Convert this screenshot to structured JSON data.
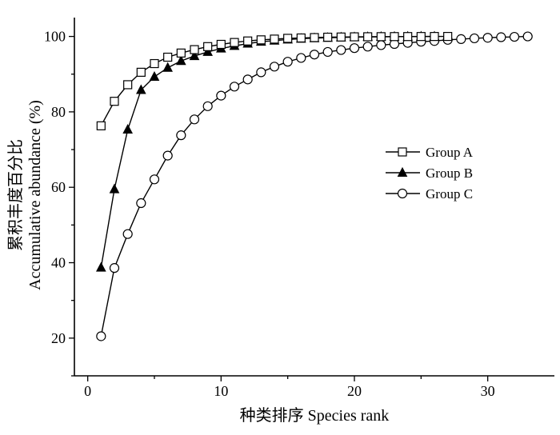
{
  "chart_data": {
    "type": "line",
    "xlabel": "种类排序 Species rank",
    "ylabel_line1": "累积丰度百分比",
    "ylabel_line2": "Accumulative abundance (%)",
    "xlim": [
      -1,
      35
    ],
    "ylim": [
      10,
      105
    ],
    "xticks": [
      0,
      10,
      20,
      30
    ],
    "yticks": [
      20,
      40,
      60,
      80,
      100
    ],
    "grid": false,
    "legend_position": "right-middle",
    "series": [
      {
        "name": "Group A",
        "marker": "square-open",
        "x": [
          1,
          2,
          3,
          4,
          5,
          6,
          7,
          8,
          9,
          10,
          11,
          12,
          13,
          14,
          15,
          16,
          17,
          18,
          19,
          20,
          21,
          22,
          23,
          24,
          25,
          26,
          27
        ],
        "y": [
          76.3,
          82.8,
          87.2,
          90.5,
          92.8,
          94.5,
          95.6,
          96.5,
          97.3,
          97.9,
          98.4,
          98.8,
          99.1,
          99.3,
          99.5,
          99.6,
          99.7,
          99.8,
          99.85,
          99.9,
          99.92,
          99.94,
          99.96,
          99.97,
          99.98,
          99.99,
          100
        ]
      },
      {
        "name": "Group B",
        "marker": "triangle-filled",
        "x": [
          1,
          2,
          3,
          4,
          5,
          6,
          7,
          8,
          9,
          10,
          11,
          12,
          13,
          14,
          15,
          16,
          17,
          18,
          19,
          20,
          21,
          22,
          23,
          24,
          25,
          26
        ],
        "y": [
          38.7,
          59.5,
          75.3,
          85.8,
          89.3,
          91.7,
          93.5,
          94.8,
          95.9,
          96.8,
          97.5,
          98.1,
          98.6,
          98.9,
          99.2,
          99.4,
          99.55,
          99.65,
          99.75,
          99.82,
          99.88,
          99.92,
          99.95,
          99.97,
          99.99,
          100
        ]
      },
      {
        "name": "Group C",
        "marker": "circle-open",
        "x": [
          1,
          2,
          3,
          4,
          5,
          6,
          7,
          8,
          9,
          10,
          11,
          12,
          13,
          14,
          15,
          16,
          17,
          18,
          19,
          20,
          21,
          22,
          23,
          24,
          25,
          26,
          27,
          28,
          29,
          30,
          31,
          32,
          33
        ],
        "y": [
          20.5,
          38.6,
          47.6,
          55.8,
          62.1,
          68.4,
          73.8,
          78.0,
          81.5,
          84.3,
          86.7,
          88.6,
          90.5,
          92.0,
          93.3,
          94.3,
          95.2,
          95.9,
          96.4,
          96.9,
          97.3,
          97.7,
          98.0,
          98.3,
          98.6,
          98.8,
          99.1,
          99.3,
          99.5,
          99.65,
          99.8,
          99.9,
          100
        ]
      }
    ]
  }
}
